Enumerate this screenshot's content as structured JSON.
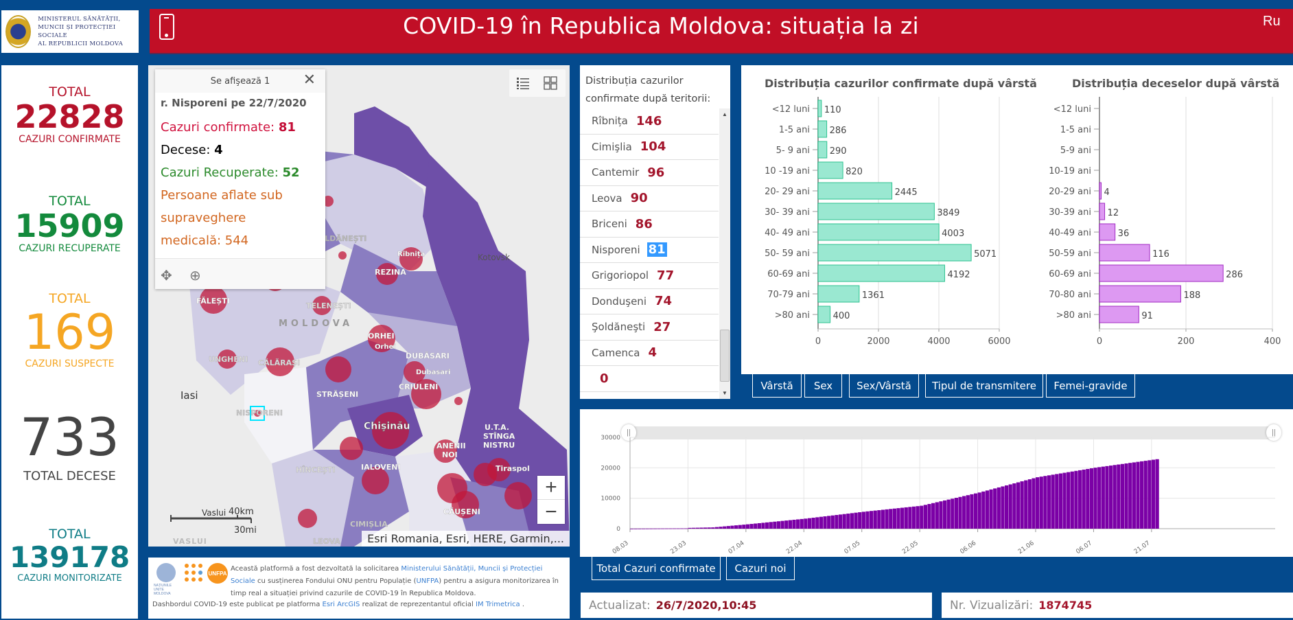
{
  "header": {
    "ministry": [
      "MINISTERUL SĂNĂTĂȚII,",
      "MUNCII ȘI PROTECȚIEI SOCIALE",
      "AL REPUBLICII MOLDOVA"
    ],
    "title": "COVID-19 în Republica Moldova: situația la zi",
    "lang_button": "Ru"
  },
  "stats": [
    {
      "total": "TOTAL",
      "value": "22828",
      "label": "CAZURI CONFIRMATE",
      "color": "#b5122a"
    },
    {
      "total": "TOTAL",
      "value": "15909",
      "label": "CAZURI RECUPERATE",
      "color": "#138a3c"
    },
    {
      "total": "TOTAL",
      "value": "169",
      "label": "CAZURI SUSPECTE",
      "color": "#f5a623"
    },
    {
      "total": "",
      "value": "733",
      "label": "TOTAL DECESE",
      "color": "#444444"
    },
    {
      "total": "TOTAL",
      "value": "139178",
      "label": "CAZURI MONITORIZATE",
      "color": "#0f7c86"
    }
  ],
  "map": {
    "popup": {
      "header": "Se afişează 1",
      "title": "r. Nisporeni pe 22/7/2020",
      "confirmed_label": "Cazuri confirmate: ",
      "confirmed_value": "81",
      "deaths_label": "Decese: ",
      "deaths_value": "4",
      "recovered_label": "Cazuri Recuperate: ",
      "recovered_value": "52",
      "supervised_label_1": "Persoane aflate sub",
      "supervised_label_2": "supraveghere",
      "supervised_label_3": "medicală: ",
      "supervised_value": "544"
    },
    "labels": [
      "SOLDĂNEȘTI",
      "Rîbnița",
      "Kotovsk",
      "REZINA",
      "FĂLEȘTI",
      "TELENEȘTI",
      "MOLDOVA",
      "ORHEI",
      "Orhei",
      "DUBĂSARI",
      "Dubasari",
      "UNGHENI",
      "CĂLĂRAȘI",
      "Iasi",
      "STRĂȘENI",
      "CRIULENI",
      "NISPORENI",
      "Chişinău",
      "U.T.A.",
      "STÎNGA",
      "NISTRU",
      "ANENII",
      "NOI",
      "HÎNCEȘTI",
      "IALOVENI",
      "Tiraspol",
      "CĂUȘENI",
      "Vaslui",
      "CIMIȘLIA",
      "VASLUI",
      "LEOVA",
      "Nisporeni"
    ],
    "scale_km": "40km",
    "scale_mi": "30mi",
    "attribution": "Esri Romania, Esri, HERE, Garmin,...",
    "zoom_in": "+",
    "zoom_out": "−"
  },
  "territory": {
    "title_1": "Distribuția cazurilor",
    "title_2": "confirmate după teritorii:",
    "items": [
      {
        "name": "Rîbnița",
        "value": "146"
      },
      {
        "name": "Cimişlia",
        "value": "104"
      },
      {
        "name": "Cantemir",
        "value": "96"
      },
      {
        "name": "Leova",
        "value": "90"
      },
      {
        "name": "Briceni",
        "value": "86"
      },
      {
        "name": "Nisporeni",
        "value": "81"
      },
      {
        "name": "Grigoriopol",
        "value": "77"
      },
      {
        "name": "Donduşeni",
        "value": "74"
      },
      {
        "name": "Şoldăneşti",
        "value": "27"
      },
      {
        "name": "Camenca",
        "value": "4"
      },
      {
        "name": "",
        "value": "0"
      }
    ]
  },
  "age_tabs": [
    "Vârstă",
    "Sex",
    "Sex/Vârstă",
    "Tipul de transmitere",
    "Femei-gravide"
  ],
  "timeline_tabs": [
    "Total Cazuri confirmate",
    "Cazuri noi"
  ],
  "footer": {
    "credits_1a": "Această platformă a fost dezvoltată la solicitarea ",
    "credits_link1": "Ministerului Sănătății, Muncii și Protecției Sociale",
    "credits_1b": " cu susținerea Fondului ONU pentru Populație (",
    "credits_link2": "UNFPA",
    "credits_1c": ") pentru a asigura monitorizarea în timp real a situației privind cazurile de  COVID-19 în Republica Moldova.",
    "credits_2a": "Dashbordul COVID-19 este publicat pe platforma ",
    "credits_link3": "Esri ArcGIS",
    "credits_2b": " realizat de reprezentantul oficial ",
    "credits_link4": "IM Trimetrica",
    "credits_2c": " .",
    "un_logo": "NAȚIUNILE UNITE MOLDOVA",
    "unfpa_logo": "UNFPA",
    "updated_label": "Actualizat:",
    "updated_value": "26/7/2020,10:45",
    "views_label": "Nr. Vizualizări:",
    "views_value": "1874745"
  },
  "chart_data": [
    {
      "type": "bar",
      "orientation": "horizontal",
      "title": "Distribuția cazurilor confirmate după vârstă",
      "categories": [
        "<12 luni",
        "1-5 ani",
        "5- 9 ani",
        "10 -19 ani",
        "20- 29 ani",
        "30- 39 ani",
        "40- 49 ani",
        "50- 59 ani",
        "60-69 ani",
        "70-79 ani",
        ">80 ani"
      ],
      "values": [
        110,
        286,
        290,
        820,
        2445,
        3849,
        4003,
        5071,
        4192,
        1361,
        400
      ],
      "xlim": [
        0,
        6000
      ],
      "xticks": [
        0,
        2000,
        4000,
        6000
      ],
      "color": "#9ae8d1",
      "grid": true
    },
    {
      "type": "bar",
      "orientation": "horizontal",
      "title": "Distribuția deceselor după vârstă",
      "categories": [
        "<12 luni",
        "1-5 ani",
        "5-9 ani",
        "10-19 ani",
        "20-29 ani",
        "30-39 ani",
        "40-49 ani",
        "50-59 ani",
        "60-69 ani",
        "70-80 ani",
        ">80 ani"
      ],
      "values": [
        0,
        0,
        0,
        0,
        4,
        12,
        36,
        116,
        286,
        188,
        91
      ],
      "xlim": [
        0,
        400
      ],
      "xticks": [
        0,
        200,
        400
      ],
      "color": "#dd99f2",
      "grid": true
    },
    {
      "type": "bar",
      "title": "Total Cazuri confirmate",
      "xlabel": "",
      "ylabel": "",
      "x_start": "08.03",
      "x_end": "22.07",
      "xticks": [
        "08.03",
        "23.03",
        "07.04",
        "22.04",
        "07.05",
        "22.05",
        "06.06",
        "21.06",
        "06.07",
        "21.07"
      ],
      "yticks": [
        0,
        10000,
        20000,
        30000
      ],
      "ylim": [
        0,
        30000
      ],
      "color": "#7b00a6",
      "anchor_points": [
        [
          0,
          5
        ],
        [
          14,
          109
        ],
        [
          15,
          263
        ],
        [
          21,
          423
        ],
        [
          30,
          1438
        ],
        [
          45,
          3304
        ],
        [
          60,
          5553
        ],
        [
          75,
          7537
        ],
        [
          90,
          11879
        ],
        [
          105,
          16898
        ],
        [
          120,
          20040
        ],
        [
          136,
          22828
        ]
      ],
      "grid": true
    }
  ]
}
